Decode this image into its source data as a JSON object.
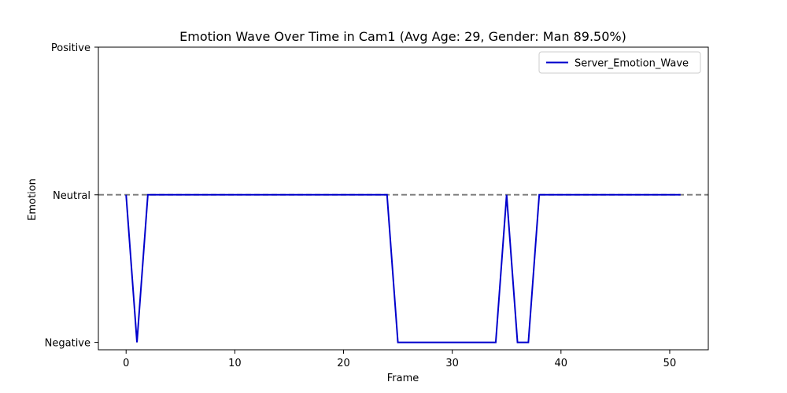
{
  "chart_data": {
    "type": "line",
    "title": "Emotion Wave Over Time in Cam1 (Avg Age: 29, Gender: Man 89.50%)",
    "xlabel": "Frame",
    "ylabel": "Emotion",
    "xlim": [
      -2.55,
      53.55
    ],
    "ylim": [
      -0.05,
      2.0
    ],
    "x_ticks": [
      0,
      10,
      20,
      30,
      40,
      50
    ],
    "y_ticks": [
      {
        "value": 0,
        "label": "Negative"
      },
      {
        "value": 1,
        "label": "Neutral"
      },
      {
        "value": 2,
        "label": "Positive"
      }
    ],
    "reference_line": {
      "value": 1,
      "color": "#808080",
      "style": "dashed"
    },
    "legend_position": "top-right",
    "grid": false,
    "series": [
      {
        "name": "Server_Emotion_Wave",
        "color": "#0000cc",
        "x": [
          0,
          1,
          2,
          3,
          4,
          5,
          6,
          7,
          8,
          9,
          10,
          11,
          12,
          13,
          14,
          15,
          16,
          17,
          18,
          19,
          20,
          21,
          22,
          23,
          24,
          25,
          26,
          27,
          28,
          29,
          30,
          31,
          32,
          33,
          34,
          35,
          36,
          37,
          38,
          39,
          40,
          41,
          42,
          43,
          44,
          45,
          46,
          47,
          48,
          49,
          50,
          51
        ],
        "values": [
          1,
          0,
          1,
          1,
          1,
          1,
          1,
          1,
          1,
          1,
          1,
          1,
          1,
          1,
          1,
          1,
          1,
          1,
          1,
          1,
          1,
          1,
          1,
          1,
          1,
          0,
          0,
          0,
          0,
          0,
          0,
          0,
          0,
          0,
          0,
          1,
          0,
          0,
          1,
          1,
          1,
          1,
          1,
          1,
          1,
          1,
          1,
          1,
          1,
          1,
          1,
          1
        ]
      }
    ]
  }
}
